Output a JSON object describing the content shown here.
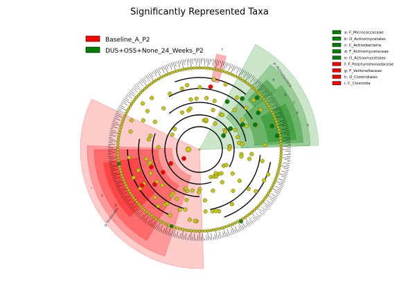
{
  "chart_data": {
    "type": "cladogram",
    "title": "Significantly Represented Taxa",
    "classes": [
      {
        "name": "Baseline_A_P2",
        "color": "#ff0000"
      },
      {
        "name": "DUS+OSS+None_24_Weeks_P2",
        "color": "#008000"
      }
    ],
    "taxa_key": [
      {
        "letter": "a",
        "taxon": "F_Micrococcaceae",
        "class": "DUS+OSS+None_24_Weeks_P2"
      },
      {
        "letter": "b",
        "taxon": "O_Actinomycetales",
        "class": "DUS+OSS+None_24_Weeks_P2"
      },
      {
        "letter": "c",
        "taxon": "C_Actinobacteria",
        "class": "DUS+OSS+None_24_Weeks_P2"
      },
      {
        "letter": "d",
        "taxon": "F_Actinomycetaceae",
        "class": "DUS+OSS+None_24_Weeks_P2"
      },
      {
        "letter": "e",
        "taxon": "O_Actinomycetales",
        "class": "DUS+OSS+None_24_Weeks_P2"
      },
      {
        "letter": "f",
        "taxon": "F_Porphyromonadaceae",
        "class": "Baseline_A_P2"
      },
      {
        "letter": "g",
        "taxon": "F_Veillonellaceae",
        "class": "Baseline_A_P2"
      },
      {
        "letter": "h",
        "taxon": "O_Clostridiales",
        "class": "Baseline_A_P2"
      },
      {
        "letter": "i",
        "taxon": "C_Clostridia",
        "class": "Baseline_A_P2"
      }
    ],
    "phylum_labels": [
      {
        "text": "p: Actinobacteria",
        "class": "DUS+OSS+None_24_Weeks_P2"
      },
      {
        "text": "p: Firmicutes",
        "class": "Baseline_A_P2"
      }
    ],
    "sector_letters": [
      "a",
      "b",
      "c",
      "d",
      "e",
      "f",
      "g",
      "h",
      "i"
    ]
  },
  "colors": {
    "node_neutral": "#c8c800",
    "node_stroke": "#555555",
    "red_shade": "#ff0000",
    "green_shade": "#008000"
  }
}
